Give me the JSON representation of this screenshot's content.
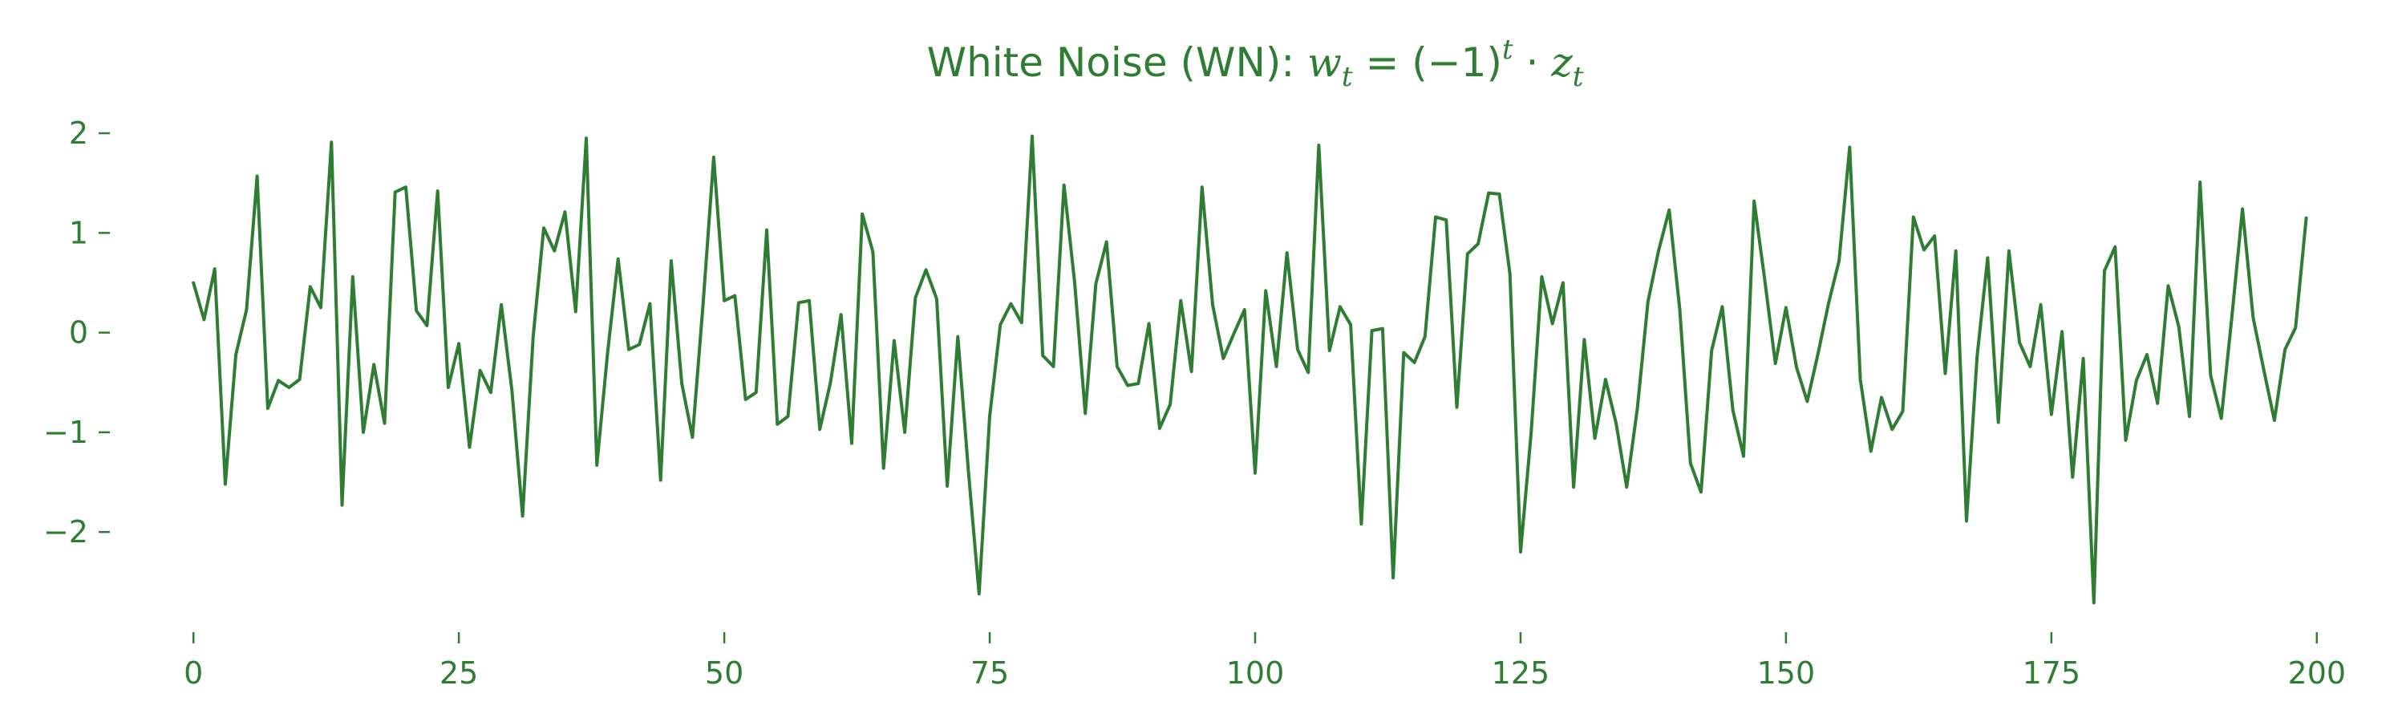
{
  "chart_data": {
    "type": "line",
    "title": {
      "prefix": "White Noise (WN): ",
      "w": "w",
      "t": "t",
      "eq": " = (−1)",
      "dot": " · ",
      "z": "z"
    },
    "xlabel": "",
    "ylabel": "",
    "xlim": [
      -5,
      205
    ],
    "ylim": [
      -2.9,
      2.25
    ],
    "xticks": [
      0,
      25,
      50,
      75,
      100,
      125,
      150,
      175,
      200
    ],
    "xtick_labels": [
      "0",
      "25",
      "50",
      "75",
      "100",
      "125",
      "150",
      "175",
      "200"
    ],
    "yticks": [
      2,
      1,
      0,
      -1,
      -2
    ],
    "ytick_labels": [
      "2",
      "1",
      "0",
      "−1",
      "−2"
    ],
    "grid": false,
    "color": "#2e7d32",
    "series": [
      {
        "values": [
          0.5,
          0.13,
          0.64,
          -1.52,
          -0.22,
          0.23,
          1.57,
          -0.76,
          -0.48,
          -0.55,
          -0.47,
          0.46,
          0.25,
          1.91,
          -1.73,
          0.56,
          -1.0,
          -0.32,
          -0.91,
          1.41,
          1.46,
          0.22,
          0.07,
          1.42,
          -0.55,
          -0.11,
          -1.15,
          -0.38,
          -0.6,
          0.28,
          -0.58,
          -1.84,
          -0.04,
          1.05,
          0.82,
          1.21,
          0.21,
          1.95,
          -1.33,
          -0.21,
          0.74,
          -0.17,
          -0.12,
          0.29,
          -1.48,
          0.72,
          -0.51,
          -1.05,
          0.28,
          1.76,
          0.32,
          0.37,
          -0.67,
          -0.6,
          1.03,
          -0.92,
          -0.84,
          0.3,
          0.32,
          -0.97,
          -0.5,
          0.18,
          -1.11,
          1.19,
          0.81,
          -1.36,
          -0.08,
          -1.0,
          0.35,
          0.63,
          0.34,
          -1.54,
          -0.04,
          -1.4,
          -2.62,
          -0.84,
          0.08,
          0.29,
          0.1,
          1.97,
          -0.23,
          -0.34,
          1.48,
          0.5,
          -0.81,
          0.49,
          0.91,
          -0.34,
          -0.53,
          -0.51,
          0.09,
          -0.96,
          -0.72,
          0.32,
          -0.39,
          1.46,
          0.28,
          -0.26,
          -0.01,
          0.23,
          -1.41,
          0.42,
          -0.34,
          0.8,
          -0.17,
          -0.4,
          1.88,
          -0.18,
          0.26,
          0.08,
          -1.92,
          0.02,
          0.04,
          -2.46,
          -0.2,
          -0.3,
          -0.04,
          1.16,
          1.13,
          -0.75,
          0.79,
          0.89,
          1.4,
          1.39,
          0.59,
          -2.2,
          -1.0,
          0.56,
          0.09,
          0.5,
          -1.55,
          -0.07,
          -1.06,
          -0.47,
          -0.91,
          -1.55,
          -0.76,
          0.31,
          0.82,
          1.23,
          0.23,
          -1.31,
          -1.6,
          -0.18,
          0.26,
          -0.78,
          -1.24,
          1.32,
          0.53,
          -0.31,
          0.25,
          -0.35,
          -0.69,
          -0.22,
          0.29,
          0.72,
          1.86,
          -0.47,
          -1.19,
          -0.65,
          -0.97,
          -0.79,
          1.16,
          0.83,
          0.97,
          -0.41,
          0.82,
          -1.89,
          -0.24,
          0.75,
          -0.9,
          0.82,
          -0.1,
          -0.34,
          0.28,
          -0.82,
          0.01,
          -1.45,
          -0.26,
          -2.71,
          0.62,
          0.86,
          -1.08,
          -0.48,
          -0.22,
          -0.71,
          0.47,
          0.06,
          -0.84,
          1.51,
          -0.43,
          -0.86,
          0.16,
          1.24,
          0.15,
          -0.37,
          -0.88,
          -0.17,
          0.05,
          1.15
        ]
      }
    ]
  }
}
